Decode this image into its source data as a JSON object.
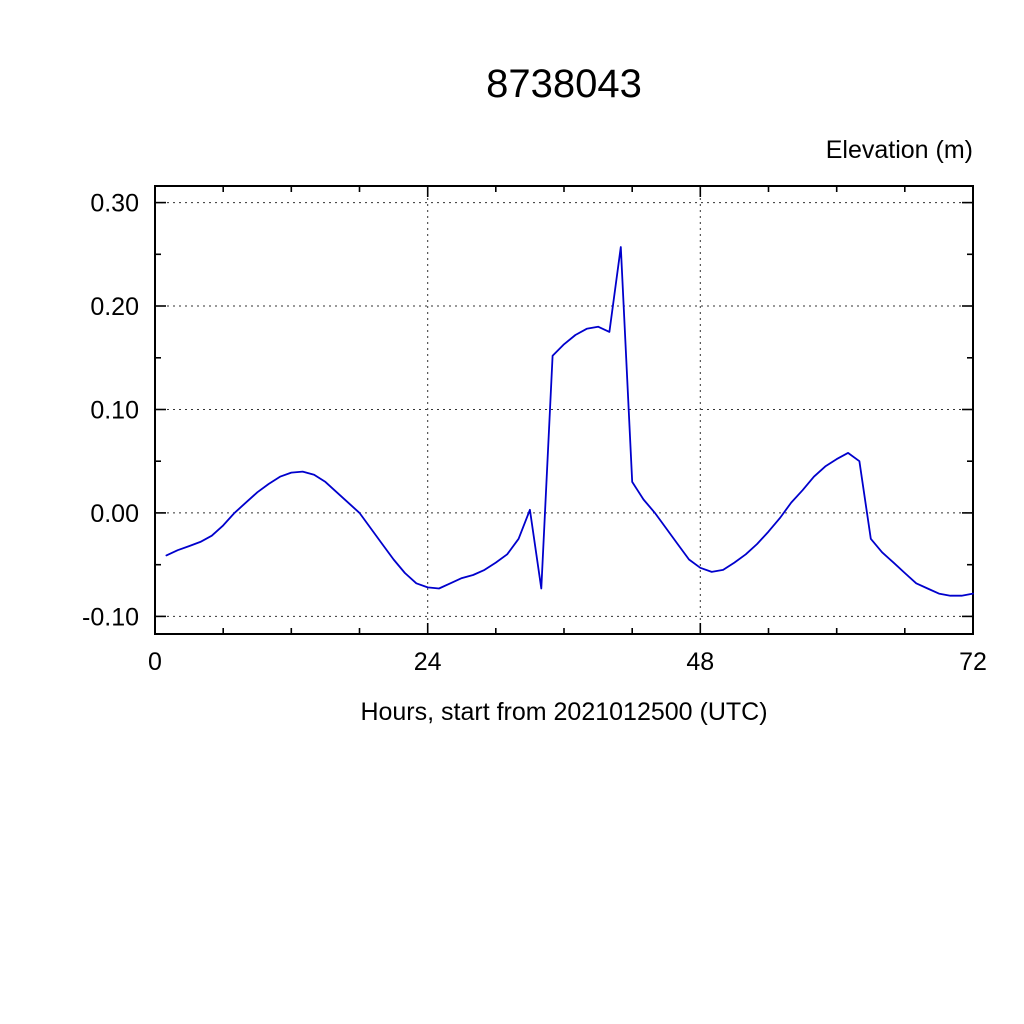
{
  "page": {
    "background": "#ffffff"
  },
  "chart_data": {
    "type": "line",
    "title": "8738043",
    "ylabel": "Elevation (m)",
    "xlabel": "Hours, start from 2021012500 (UTC)",
    "line_color": "#0000cc",
    "grid": true,
    "legend": "none",
    "xlim": [
      0,
      72
    ],
    "ylim": [
      -0.117,
      0.316
    ],
    "x_major_ticks": [
      0,
      24,
      48,
      72
    ],
    "x_tick_labels": [
      "0",
      "24",
      "48",
      "72"
    ],
    "x_minor_ticks": [
      6,
      12,
      18,
      30,
      36,
      42,
      54,
      60,
      66
    ],
    "x_gridlines": [
      24,
      48
    ],
    "y_major_ticks": [
      -0.1,
      0.0,
      0.1,
      0.2,
      0.3
    ],
    "y_tick_labels": [
      "-0.10",
      "0.00",
      "0.10",
      "0.20",
      "0.30"
    ],
    "y_minor_ticks": [
      -0.05,
      0.05,
      0.15,
      0.25
    ],
    "y_gridlines": [
      -0.1,
      0.0,
      0.1,
      0.2,
      0.3
    ],
    "series": [
      {
        "name": "elevation",
        "x": [
          1,
          2,
          3,
          4,
          5,
          6,
          7,
          8,
          9,
          10,
          11,
          12,
          13,
          14,
          15,
          16,
          17,
          18,
          19,
          20,
          21,
          22,
          23,
          24,
          25,
          26,
          27,
          28,
          29,
          30,
          31,
          32,
          33,
          34,
          35,
          36,
          37,
          38,
          39,
          40,
          41,
          42,
          43,
          44,
          45,
          46,
          47,
          48,
          49,
          50,
          51,
          52,
          53,
          54,
          55,
          56,
          57,
          58,
          59,
          60,
          61,
          62,
          63,
          64,
          65,
          66,
          67,
          68,
          69,
          70,
          71,
          72
        ],
        "y": [
          -0.041,
          -0.036,
          -0.032,
          -0.028,
          -0.022,
          -0.012,
          0.0,
          0.01,
          0.02,
          0.028,
          0.035,
          0.039,
          0.04,
          0.037,
          0.03,
          0.02,
          0.01,
          0.0,
          -0.015,
          -0.03,
          -0.045,
          -0.058,
          -0.068,
          -0.072,
          -0.073,
          -0.068,
          -0.063,
          -0.06,
          -0.055,
          -0.048,
          -0.04,
          -0.025,
          0.003,
          -0.073,
          0.152,
          0.163,
          0.172,
          0.178,
          0.18,
          0.175,
          0.257,
          0.03,
          0.013,
          0.0,
          -0.015,
          -0.03,
          -0.045,
          -0.053,
          -0.057,
          -0.055,
          -0.048,
          -0.04,
          -0.03,
          -0.018,
          -0.005,
          0.01,
          0.022,
          0.035,
          0.045,
          0.052,
          0.058,
          0.05,
          -0.025,
          -0.038,
          -0.048,
          -0.058,
          -0.068,
          -0.073,
          -0.078,
          -0.08,
          -0.08,
          -0.078
        ]
      }
    ]
  }
}
